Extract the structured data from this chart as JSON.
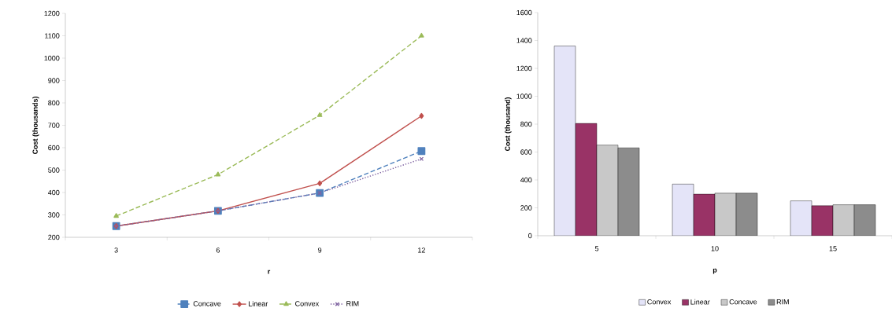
{
  "chart_data": [
    {
      "type": "line",
      "categories": [
        "3",
        "6",
        "9",
        "12"
      ],
      "xlabel": "r",
      "ylabel": "Cost (thousands)",
      "ylim": [
        200,
        1200
      ],
      "yticks": [
        200,
        300,
        400,
        500,
        600,
        700,
        800,
        900,
        1000,
        1100,
        1200
      ],
      "legend": "bottom",
      "series": [
        {
          "name": "Concave",
          "color": "#4f81bd",
          "marker": "square",
          "line_style": "dashed",
          "values": [
            250,
            318,
            398,
            585
          ]
        },
        {
          "name": "Linear",
          "color": "#c0504d",
          "marker": "diamond",
          "line_style": "solid",
          "values": [
            250,
            318,
            441,
            742
          ]
        },
        {
          "name": "Convex",
          "color": "#9bbb59",
          "marker": "triangle",
          "line_style": "dashed",
          "values": [
            295,
            480,
            745,
            1100
          ]
        },
        {
          "name": "RIM",
          "color": "#8064a2",
          "marker": "cross",
          "line_style": "dotted",
          "values": [
            250,
            318,
            398,
            550
          ]
        }
      ]
    },
    {
      "type": "bar",
      "categories": [
        "5",
        "10",
        "15"
      ],
      "xlabel": "p",
      "ylabel": "Cost (thousand)",
      "ylim": [
        0,
        1600
      ],
      "yticks": [
        0,
        200,
        400,
        600,
        800,
        1000,
        1200,
        1400,
        1600
      ],
      "legend": "bottom",
      "series": [
        {
          "name": "Convex",
          "color": "#e4e4f8",
          "values": [
            1360,
            370,
            250
          ]
        },
        {
          "name": "Linear",
          "color": "#993366",
          "values": [
            805,
            298,
            215
          ]
        },
        {
          "name": "Concave",
          "color": "#c8c8c8",
          "values": [
            650,
            305,
            222
          ]
        },
        {
          "name": "RIM",
          "color": "#8c8c8c",
          "values": [
            630,
            305,
            222
          ]
        }
      ]
    }
  ]
}
